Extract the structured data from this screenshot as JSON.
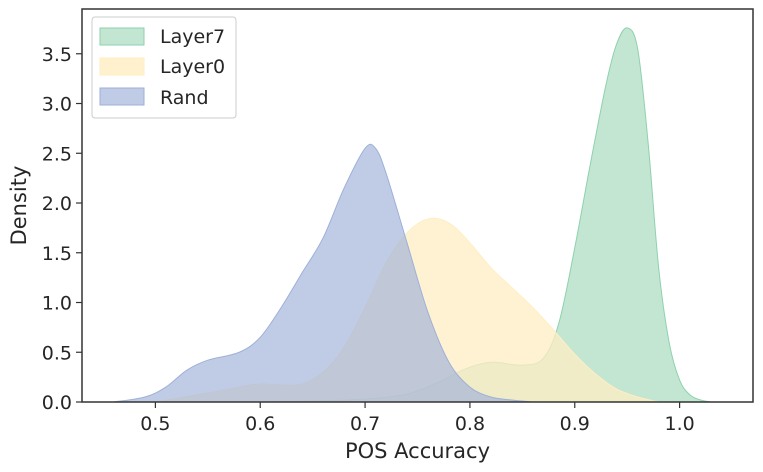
{
  "chart_data": {
    "type": "area",
    "xlabel": "POS Accuracy",
    "ylabel": "Density",
    "xlim": [
      0.43,
      1.07
    ],
    "ylim": [
      0.0,
      3.95
    ],
    "xticks": [
      "0.5",
      "0.6",
      "0.7",
      "0.8",
      "0.9",
      "1.0"
    ],
    "yticks": [
      "0.0",
      "0.5",
      "1.0",
      "1.5",
      "2.0",
      "2.5",
      "3.0",
      "3.5"
    ],
    "legend_position": "top-left",
    "series": [
      {
        "name": "Layer7",
        "color": "#8fd1ad",
        "points": [
          [
            0.6,
            0.0
          ],
          [
            0.65,
            0.01
          ],
          [
            0.7,
            0.03
          ],
          [
            0.74,
            0.08
          ],
          [
            0.77,
            0.2
          ],
          [
            0.795,
            0.33
          ],
          [
            0.82,
            0.4
          ],
          [
            0.85,
            0.37
          ],
          [
            0.87,
            0.44
          ],
          [
            0.885,
            0.8
          ],
          [
            0.9,
            1.55
          ],
          [
            0.915,
            2.4
          ],
          [
            0.93,
            3.2
          ],
          [
            0.94,
            3.6
          ],
          [
            0.95,
            3.76
          ],
          [
            0.96,
            3.55
          ],
          [
            0.97,
            2.6
          ],
          [
            0.98,
            1.35
          ],
          [
            0.99,
            0.6
          ],
          [
            1.0,
            0.22
          ],
          [
            1.01,
            0.07
          ],
          [
            1.02,
            0.02
          ],
          [
            1.03,
            0.0
          ]
        ]
      },
      {
        "name": "Layer0",
        "color": "#ffeec4",
        "points": [
          [
            0.5,
            0.0
          ],
          [
            0.55,
            0.09
          ],
          [
            0.58,
            0.15
          ],
          [
            0.6,
            0.18
          ],
          [
            0.62,
            0.17
          ],
          [
            0.64,
            0.18
          ],
          [
            0.66,
            0.3
          ],
          [
            0.68,
            0.55
          ],
          [
            0.7,
            0.95
          ],
          [
            0.72,
            1.4
          ],
          [
            0.74,
            1.7
          ],
          [
            0.76,
            1.84
          ],
          [
            0.78,
            1.8
          ],
          [
            0.8,
            1.6
          ],
          [
            0.82,
            1.35
          ],
          [
            0.84,
            1.15
          ],
          [
            0.86,
            0.95
          ],
          [
            0.88,
            0.72
          ],
          [
            0.9,
            0.48
          ],
          [
            0.92,
            0.28
          ],
          [
            0.94,
            0.13
          ],
          [
            0.96,
            0.05
          ],
          [
            0.98,
            0.0
          ]
        ]
      },
      {
        "name": "Rand",
        "color": "#9eb0d9",
        "points": [
          [
            0.46,
            0.0
          ],
          [
            0.49,
            0.05
          ],
          [
            0.51,
            0.15
          ],
          [
            0.53,
            0.32
          ],
          [
            0.55,
            0.42
          ],
          [
            0.58,
            0.5
          ],
          [
            0.6,
            0.65
          ],
          [
            0.62,
            0.95
          ],
          [
            0.64,
            1.3
          ],
          [
            0.66,
            1.65
          ],
          [
            0.68,
            2.15
          ],
          [
            0.7,
            2.55
          ],
          [
            0.71,
            2.55
          ],
          [
            0.72,
            2.3
          ],
          [
            0.74,
            1.6
          ],
          [
            0.76,
            0.9
          ],
          [
            0.78,
            0.4
          ],
          [
            0.8,
            0.15
          ],
          [
            0.82,
            0.05
          ],
          [
            0.84,
            0.02
          ],
          [
            0.86,
            0.0
          ]
        ]
      }
    ]
  }
}
